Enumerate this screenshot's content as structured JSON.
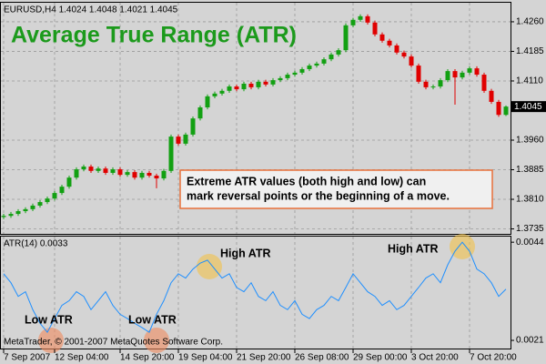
{
  "chart_data": [
    {
      "type": "candlestick",
      "header": "EURUSD,H4  1.4024 1.4048 1.4021 1.4045",
      "title": "Average True Range (ATR)",
      "annotation": [
        "Extreme ATR values (both high and low) can",
        "mark reversal points or the beginning of a move."
      ],
      "categories": [
        "7 Sep 2007",
        null,
        null,
        null,
        null,
        null,
        null,
        "12 Sep 04:00",
        null,
        null,
        null,
        null,
        null,
        null,
        null,
        null,
        "14 Sep 20:00",
        null,
        null,
        null,
        null,
        null,
        null,
        null,
        "19 Sep 04:00",
        null,
        null,
        null,
        null,
        null,
        null,
        null,
        "21 Sep 20:00",
        null,
        null,
        null,
        null,
        null,
        null,
        null,
        "26 Sep 08:00",
        null,
        null,
        null,
        null,
        null,
        null,
        null,
        "29 Sep 00:00",
        null,
        null,
        null,
        null,
        null,
        null,
        null,
        "3 Oct 20:00",
        null,
        null,
        null,
        null,
        null,
        null,
        null,
        "7 Oct 20:00",
        null,
        null,
        null,
        null,
        null
      ],
      "open": [
        1.3765,
        1.3768,
        1.3773,
        1.378,
        1.3785,
        1.3794,
        1.3803,
        1.3812,
        1.3826,
        1.3842,
        1.3865,
        1.3886,
        1.3893,
        1.3882,
        1.3888,
        1.3877,
        1.3886,
        1.3872,
        1.3879,
        1.3865,
        1.3877,
        1.387,
        1.3863,
        1.3882,
        1.3969,
        1.3951,
        1.3974,
        1.4015,
        1.4043,
        1.4071,
        1.4078,
        1.4085,
        1.4096,
        1.4089,
        1.4103,
        1.4094,
        1.4108,
        1.4101,
        1.4112,
        1.4117,
        1.4126,
        1.4131,
        1.414,
        1.4149,
        1.4154,
        1.4165,
        1.4177,
        1.4188,
        1.4251,
        1.4265,
        1.4274,
        1.4258,
        1.4228,
        1.4212,
        1.42,
        1.4182,
        1.4172,
        1.4149,
        1.4108,
        1.4094,
        1.4096,
        1.4112,
        1.4135,
        1.4119,
        1.4131,
        1.4142,
        1.4126,
        1.4085,
        1.4057,
        1.4024
      ],
      "high": [
        1.3773,
        1.3778,
        1.3785,
        1.379,
        1.3799,
        1.3808,
        1.3817,
        1.3831,
        1.3847,
        1.387,
        1.3891,
        1.3898,
        1.3898,
        1.3893,
        1.3893,
        1.3891,
        1.3891,
        1.3884,
        1.3884,
        1.3882,
        1.3882,
        1.3875,
        1.3887,
        1.3974,
        1.3974,
        1.3979,
        1.402,
        1.4048,
        1.4076,
        1.4083,
        1.409,
        1.4101,
        1.4101,
        1.4108,
        1.4108,
        1.4113,
        1.4113,
        1.4117,
        1.4122,
        1.4131,
        1.4136,
        1.4145,
        1.4154,
        1.4159,
        1.417,
        1.4182,
        1.4193,
        1.4256,
        1.427,
        1.4279,
        1.4279,
        1.4263,
        1.4233,
        1.4217,
        1.4205,
        1.4187,
        1.4177,
        1.4154,
        1.4113,
        1.4101,
        1.4117,
        1.414,
        1.414,
        1.4136,
        1.4147,
        1.4147,
        1.4131,
        1.409,
        1.4062,
        1.4048
      ],
      "low": [
        1.376,
        1.3763,
        1.3768,
        1.3775,
        1.378,
        1.3789,
        1.3798,
        1.3807,
        1.3821,
        1.3837,
        1.386,
        1.3881,
        1.3877,
        1.3877,
        1.3872,
        1.3872,
        1.3867,
        1.3867,
        1.386,
        1.386,
        1.3865,
        1.3838,
        1.3858,
        1.3877,
        1.3946,
        1.3946,
        1.3969,
        1.401,
        1.4038,
        1.4066,
        1.4073,
        1.408,
        1.4084,
        1.4084,
        1.4089,
        1.4089,
        1.4096,
        1.4096,
        1.4107,
        1.4112,
        1.4121,
        1.4126,
        1.4135,
        1.4144,
        1.4149,
        1.416,
        1.4172,
        1.4183,
        1.4246,
        1.426,
        1.4253,
        1.4223,
        1.4207,
        1.4195,
        1.4177,
        1.4167,
        1.4144,
        1.4103,
        1.4089,
        1.4089,
        1.4091,
        1.4107,
        1.405,
        1.4114,
        1.4126,
        1.4121,
        1.408,
        1.4052,
        1.4019,
        1.4021
      ],
      "close": [
        1.3768,
        1.3773,
        1.378,
        1.3785,
        1.3794,
        1.3803,
        1.3812,
        1.3826,
        1.3842,
        1.3865,
        1.3886,
        1.3893,
        1.3882,
        1.3888,
        1.3877,
        1.3886,
        1.3872,
        1.3879,
        1.3865,
        1.3877,
        1.387,
        1.3863,
        1.3882,
        1.3969,
        1.3951,
        1.3974,
        1.4015,
        1.4043,
        1.4071,
        1.4078,
        1.4085,
        1.4096,
        1.4089,
        1.4103,
        1.4094,
        1.4108,
        1.4101,
        1.4112,
        1.4117,
        1.4126,
        1.4131,
        1.414,
        1.4149,
        1.4154,
        1.4165,
        1.4177,
        1.4188,
        1.4251,
        1.4265,
        1.4274,
        1.4258,
        1.4228,
        1.4212,
        1.42,
        1.4182,
        1.4172,
        1.4149,
        1.4108,
        1.4094,
        1.4096,
        1.4112,
        1.4135,
        1.4119,
        1.4131,
        1.4142,
        1.4126,
        1.4085,
        1.4057,
        1.4024,
        1.4045
      ],
      "up_color": "#12a012",
      "down_color": "#e00000",
      "ylim": [
        1.3727,
        1.4306
      ],
      "yticks": [
        {
          "value": 1.426,
          "label": "1.4260"
        },
        1.4185,
        {
          "value": 1.411,
          "label": "1.4110"
        },
        {
          "value": 1.396,
          "label": "1.3960"
        },
        1.3885,
        {
          "value": 1.381,
          "label": "1.3810"
        },
        1.3735
      ],
      "current_price": 1.4045,
      "grid": true
    },
    {
      "type": "line",
      "label": "ATR(14) 0.0033",
      "values": [
        0.00366,
        0.00345,
        0.00313,
        0.00324,
        0.00282,
        0.0025,
        0.00229,
        0.00261,
        0.00292,
        0.00303,
        0.00324,
        0.00313,
        0.00282,
        0.00303,
        0.00324,
        0.00292,
        0.00271,
        0.00261,
        0.0025,
        0.0024,
        0.00229,
        0.00271,
        0.00303,
        0.00345,
        0.00366,
        0.00356,
        0.00377,
        0.00391,
        0.00398,
        0.00377,
        0.00356,
        0.00366,
        0.00334,
        0.00324,
        0.00345,
        0.00313,
        0.00303,
        0.00324,
        0.00292,
        0.00282,
        0.00303,
        0.00271,
        0.00261,
        0.00282,
        0.00292,
        0.00313,
        0.00303,
        0.00334,
        0.00366,
        0.00345,
        0.00324,
        0.00313,
        0.00292,
        0.00303,
        0.00282,
        0.00292,
        0.00313,
        0.00334,
        0.00356,
        0.00366,
        0.00345,
        0.00387,
        0.00419,
        0.0044,
        0.00419,
        0.00377,
        0.00366,
        0.00345,
        0.00313,
        0.0033
      ],
      "color": "#1e8fff",
      "ylim": [
        0.00193,
        0.00451
      ],
      "yticks": [
        0.0044,
        0.0021
      ],
      "high_label": "High ATR",
      "low_label": "Low ATR",
      "copyright": "MetaTrader, © 2001-2007 MetaQuotes Software Corp.",
      "grid": true
    }
  ]
}
